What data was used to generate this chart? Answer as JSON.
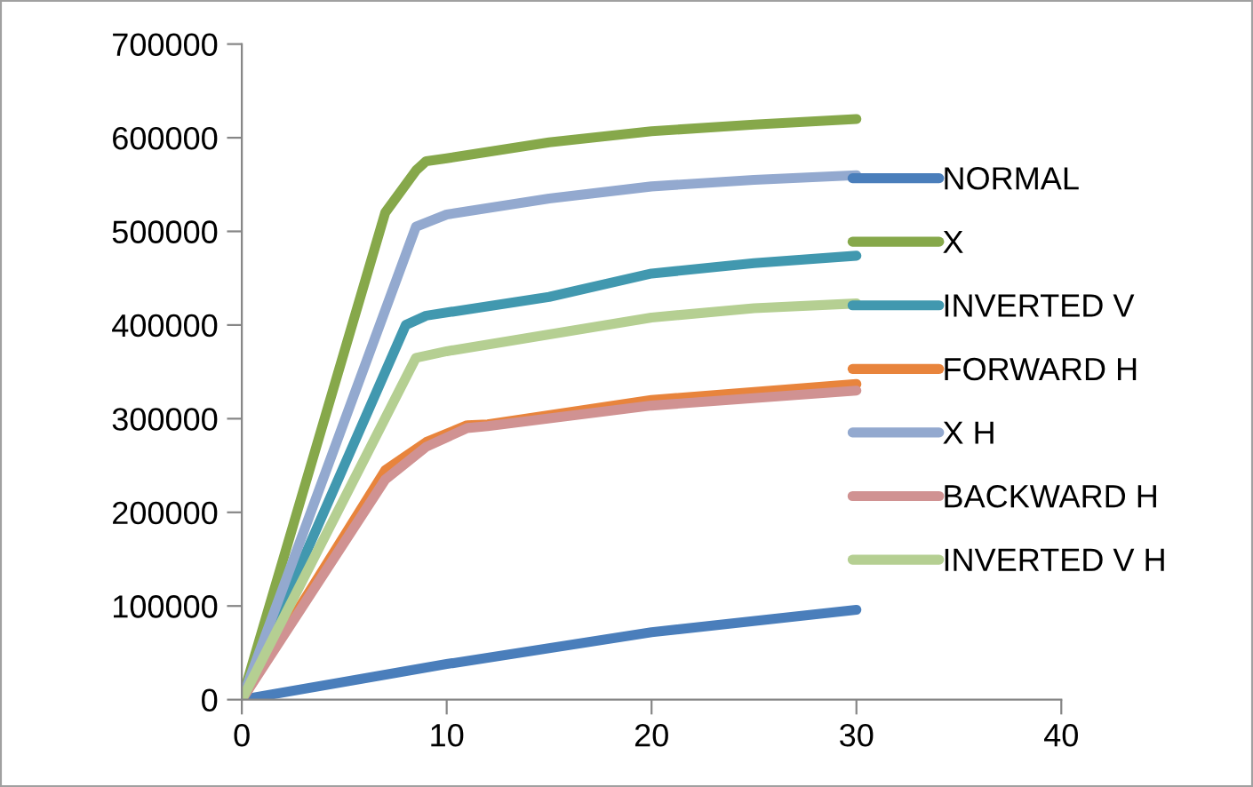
{
  "chart_data": {
    "type": "line",
    "xlim": [
      0,
      40
    ],
    "xticks": [
      0,
      10,
      20,
      30,
      40
    ],
    "ylim": [
      0,
      700000
    ],
    "yticks": [
      0,
      100000,
      200000,
      300000,
      400000,
      500000,
      600000,
      700000
    ],
    "grid": false,
    "legend": "right",
    "marker": "none",
    "line_style": "solid",
    "series": [
      {
        "name": "NORMAL",
        "color": "#4a7ebb",
        "x": [
          0,
          10,
          20,
          30
        ],
        "values": [
          0,
          38000,
          72000,
          96000
        ]
      },
      {
        "name": "X",
        "color": "#86a84a",
        "x": [
          0,
          7,
          8.5,
          9,
          10,
          15,
          20,
          25,
          30
        ],
        "values": [
          0,
          520000,
          565000,
          575000,
          578000,
          595000,
          607000,
          614000,
          620000
        ]
      },
      {
        "name": "INVERTED V",
        "color": "#4198af",
        "x": [
          0,
          8,
          9,
          15,
          20,
          25,
          30
        ],
        "values": [
          0,
          400000,
          410000,
          430000,
          455000,
          466000,
          474000
        ]
      },
      {
        "name": "FORWARD H",
        "color": "#e8843c",
        "x": [
          0,
          7,
          9,
          11,
          12,
          20,
          30
        ],
        "values": [
          0,
          245000,
          275000,
          293000,
          294000,
          320000,
          337000
        ]
      },
      {
        "name": "X H",
        "color": "#93a9cf",
        "x": [
          0,
          8.5,
          10,
          15,
          20,
          25,
          30
        ],
        "values": [
          0,
          505000,
          518000,
          535000,
          548000,
          555000,
          560000
        ]
      },
      {
        "name": "BACKWARD H",
        "color": "#d09292",
        "x": [
          0,
          7,
          9,
          11,
          12,
          20,
          30
        ],
        "values": [
          0,
          235000,
          270000,
          290000,
          292000,
          314000,
          330000
        ]
      },
      {
        "name": "INVERTED V H",
        "color": "#b5cf92",
        "x": [
          0,
          8.5,
          10,
          15,
          20,
          25,
          30
        ],
        "values": [
          0,
          365000,
          372000,
          390000,
          408000,
          418000,
          423000
        ]
      }
    ]
  }
}
